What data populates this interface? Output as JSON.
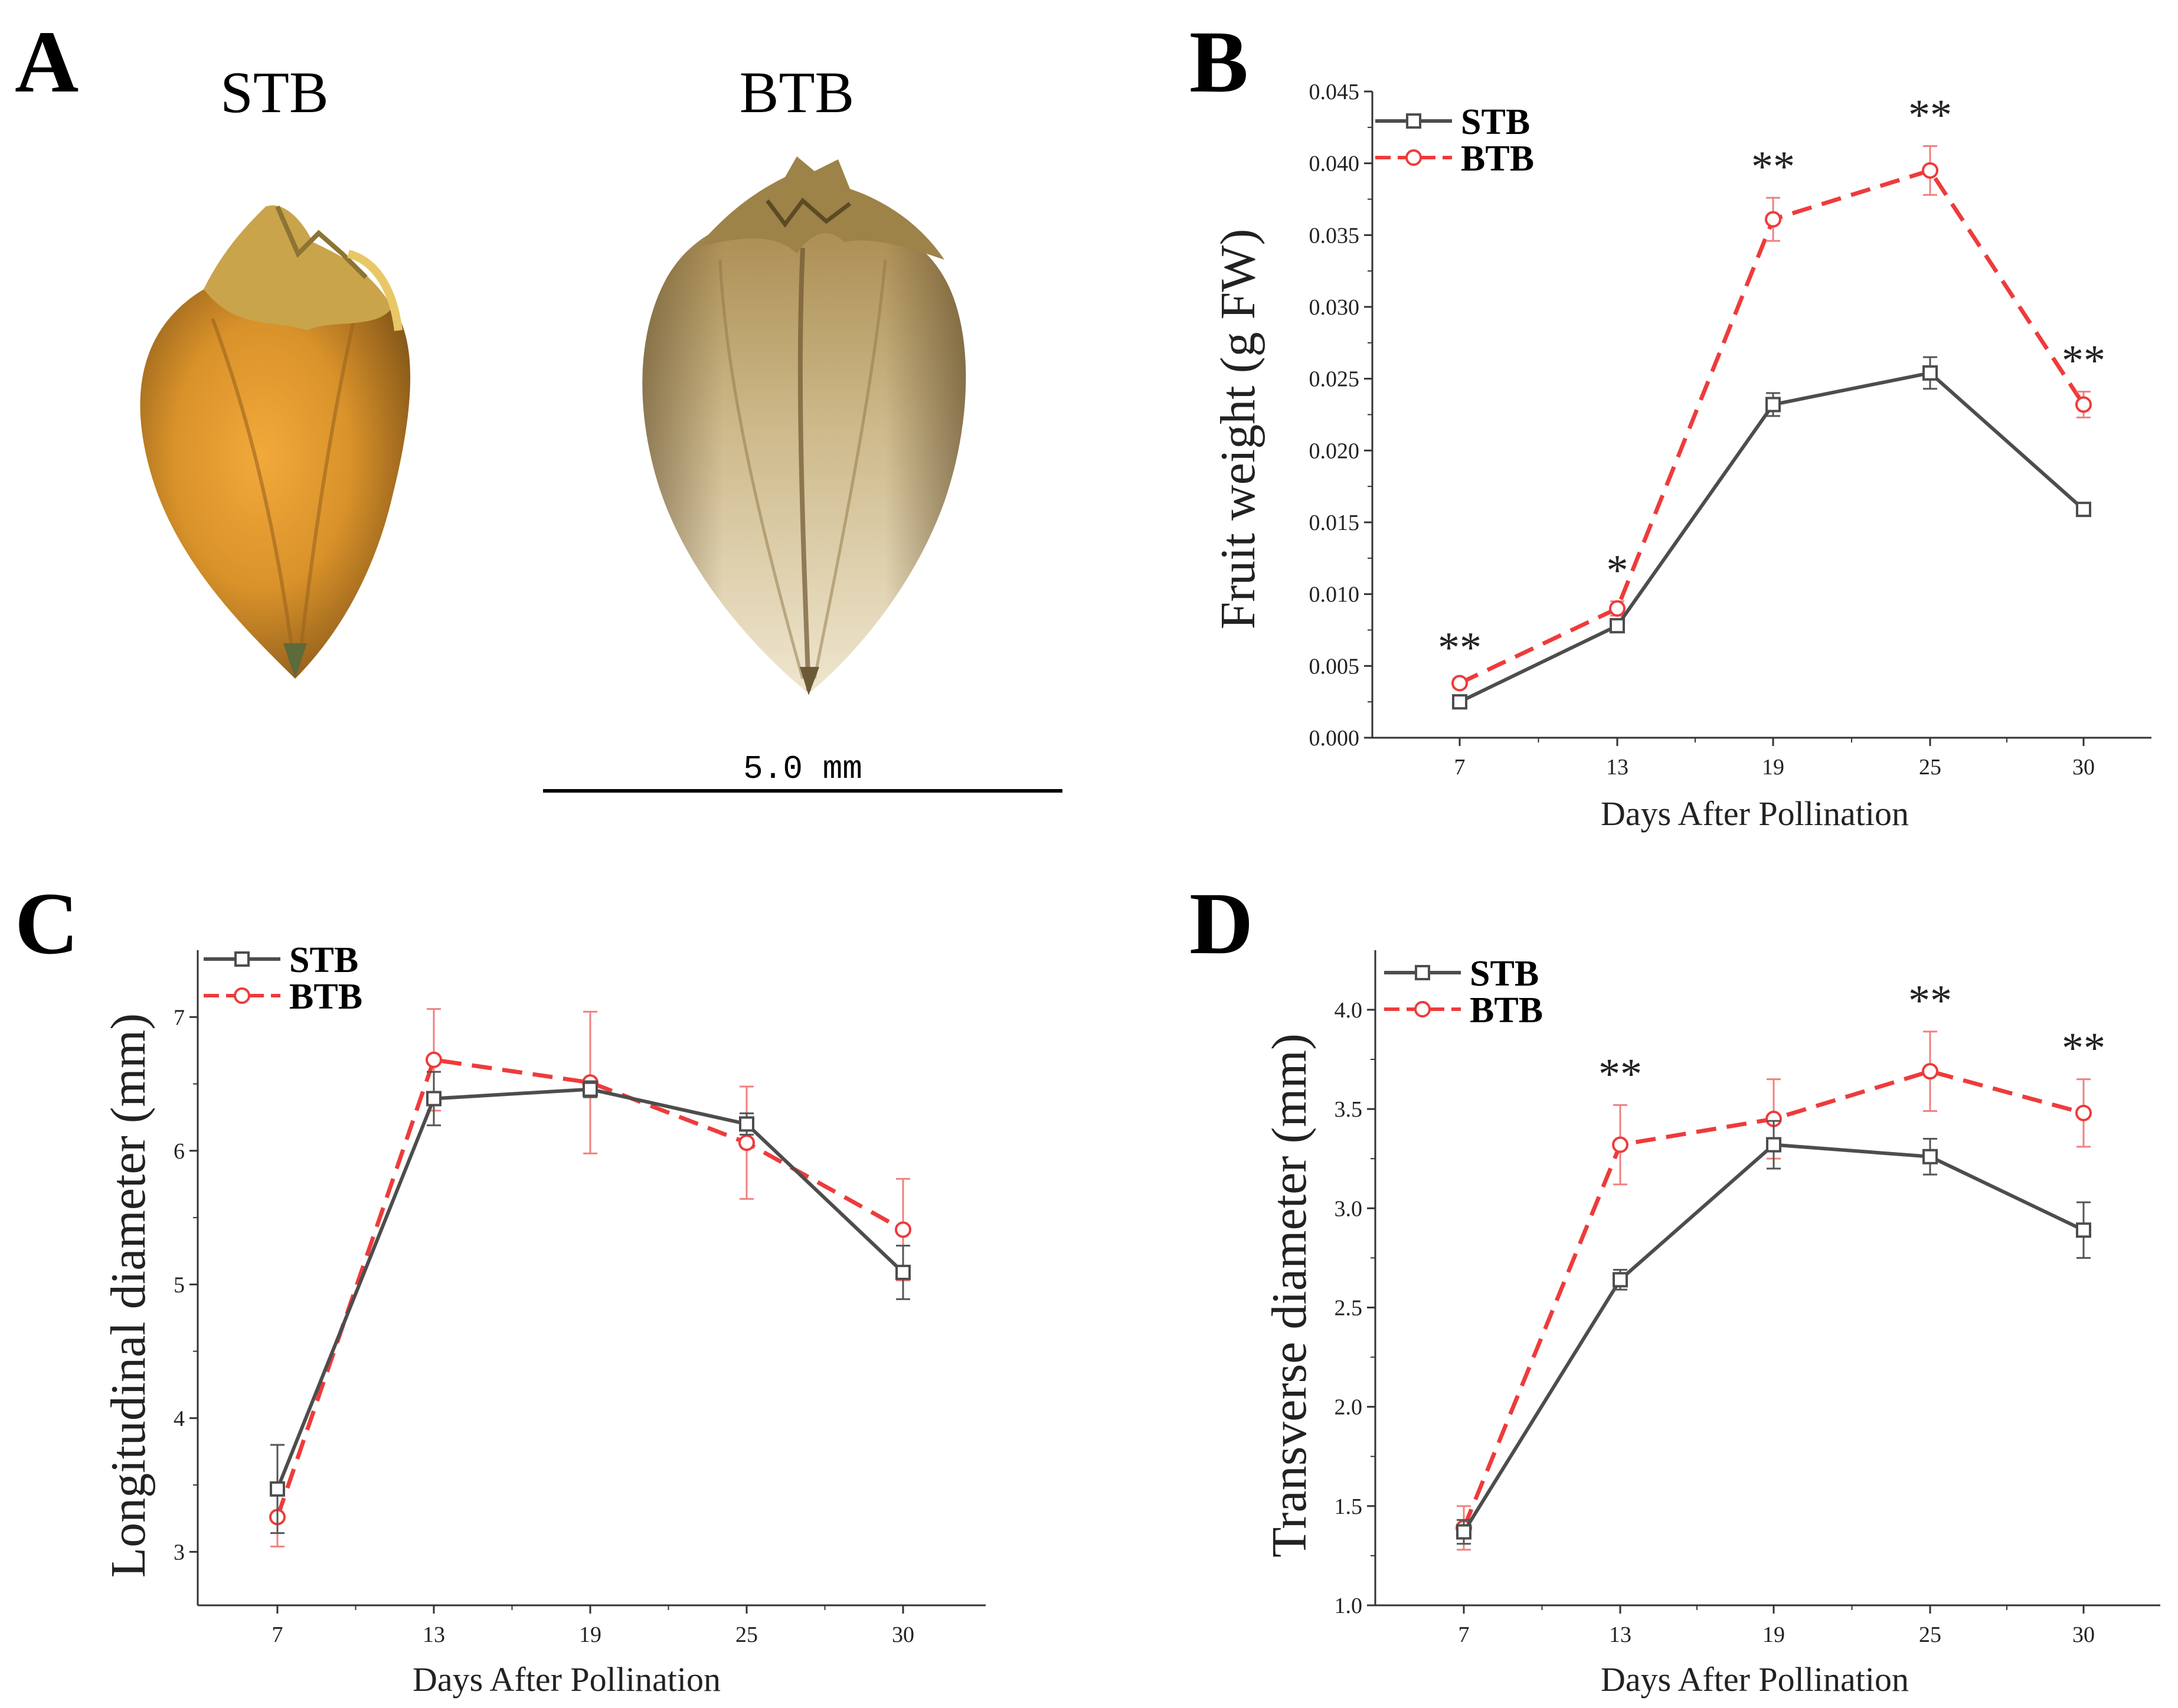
{
  "panel_a": {
    "label": "A",
    "samples": [
      "STB",
      "BTB"
    ],
    "scale_bar_label": "5.0 mm"
  },
  "chart_data": [
    {
      "panel": "B",
      "type": "line",
      "xlabel": "Days After Pollination",
      "ylabel": "Fruit weight (g FW)",
      "categories": [
        "7",
        "13",
        "19",
        "25",
        "30"
      ],
      "ylim": [
        0.0,
        0.045
      ],
      "yticks": [
        "0.000",
        "0.005",
        "0.010",
        "0.015",
        "0.020",
        "0.025",
        "0.030",
        "0.035",
        "0.040",
        "0.045"
      ],
      "legend_position": "top-left",
      "series": [
        {
          "name": "STB",
          "color": "#4d4d4d",
          "marker": "square",
          "dashed": false,
          "values": [
            0.0025,
            0.0078,
            0.0232,
            0.0254,
            0.0159
          ],
          "errors": [
            0.0003,
            0.0004,
            0.0008,
            0.0011,
            0.0003
          ]
        },
        {
          "name": "BTB",
          "color": "#ee3b3b",
          "marker": "circle",
          "dashed": true,
          "values": [
            0.0038,
            0.009,
            0.0361,
            0.0395,
            0.0232
          ],
          "errors": [
            0.0003,
            0.0005,
            0.0015,
            0.0017,
            0.0009
          ]
        }
      ],
      "significance": [
        "**",
        "*",
        "**",
        "**",
        "**"
      ]
    },
    {
      "panel": "C",
      "type": "line",
      "xlabel": "Days After Pollination",
      "ylabel": "Longitudinal diameter (mm)",
      "categories": [
        "7",
        "13",
        "19",
        "25",
        "30"
      ],
      "ylim": [
        2.6,
        7.5
      ],
      "yticks": [
        "3",
        "4",
        "5",
        "6",
        "7"
      ],
      "legend_position": "top-left",
      "series": [
        {
          "name": "STB",
          "color": "#4d4d4d",
          "marker": "square",
          "dashed": false,
          "values": [
            3.47,
            6.39,
            6.46,
            6.2,
            5.09
          ],
          "errors": [
            0.33,
            0.2,
            0.06,
            0.08,
            0.2
          ]
        },
        {
          "name": "BTB",
          "color": "#ee3b3b",
          "marker": "circle",
          "dashed": true,
          "values": [
            3.26,
            6.68,
            6.51,
            6.06,
            5.41
          ],
          "errors": [
            0.22,
            0.38,
            0.53,
            0.42,
            0.38
          ]
        }
      ],
      "significance": [
        "",
        "",
        "",
        "",
        ""
      ]
    },
    {
      "panel": "D",
      "type": "line",
      "xlabel": "Days After Pollination",
      "ylabel": "Transverse diameter (mm)",
      "categories": [
        "7",
        "13",
        "19",
        "25",
        "30"
      ],
      "ylim": [
        1.0,
        4.3
      ],
      "yticks": [
        "1.0",
        "1.5",
        "2.0",
        "2.5",
        "3.0",
        "3.5",
        "4.0"
      ],
      "legend_position": "top-left",
      "series": [
        {
          "name": "STB",
          "color": "#4d4d4d",
          "marker": "square",
          "dashed": false,
          "values": [
            1.37,
            2.64,
            3.32,
            3.26,
            2.89
          ],
          "errors": [
            0.06,
            0.05,
            0.12,
            0.09,
            0.14
          ]
        },
        {
          "name": "BTB",
          "color": "#ee3b3b",
          "marker": "circle",
          "dashed": true,
          "values": [
            1.39,
            3.32,
            3.45,
            3.69,
            3.48
          ],
          "errors": [
            0.11,
            0.2,
            0.2,
            0.2,
            0.17
          ]
        }
      ],
      "significance": [
        "",
        "**",
        "",
        "**",
        "**"
      ]
    }
  ]
}
